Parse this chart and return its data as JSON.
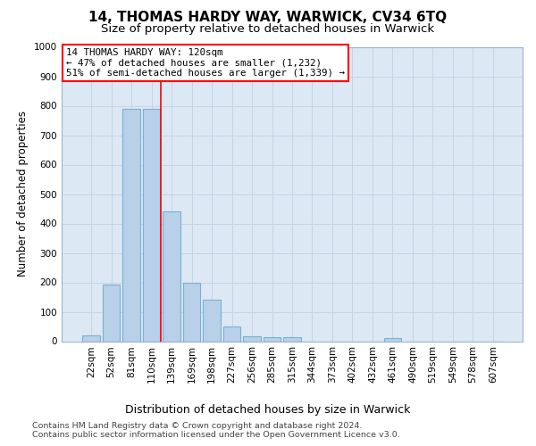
{
  "title": "14, THOMAS HARDY WAY, WARWICK, CV34 6TQ",
  "subtitle": "Size of property relative to detached houses in Warwick",
  "xlabel": "Distribution of detached houses by size in Warwick",
  "ylabel": "Number of detached properties",
  "categories": [
    "22sqm",
    "52sqm",
    "81sqm",
    "110sqm",
    "139sqm",
    "169sqm",
    "198sqm",
    "227sqm",
    "256sqm",
    "285sqm",
    "315sqm",
    "344sqm",
    "373sqm",
    "402sqm",
    "432sqm",
    "461sqm",
    "490sqm",
    "519sqm",
    "549sqm",
    "578sqm",
    "607sqm"
  ],
  "values": [
    20,
    193,
    790,
    790,
    440,
    197,
    140,
    50,
    17,
    14,
    13,
    0,
    0,
    0,
    0,
    10,
    0,
    0,
    0,
    0,
    0
  ],
  "bar_color": "#b8d0e8",
  "bar_edge_color": "#7aafd4",
  "bar_linewidth": 0.8,
  "vline_color": "red",
  "vline_linewidth": 1.2,
  "vline_x": 3.45,
  "ylim": [
    0,
    1000
  ],
  "yticks": [
    0,
    100,
    200,
    300,
    400,
    500,
    600,
    700,
    800,
    900,
    1000
  ],
  "annotation_title": "14 THOMAS HARDY WAY: 120sqm",
  "annotation_line1": "← 47% of detached houses are smaller (1,232)",
  "annotation_line2": "51% of semi-detached houses are larger (1,339) →",
  "annotation_box_facecolor": "white",
  "annotation_box_edgecolor": "red",
  "footer_line1": "Contains HM Land Registry data © Crown copyright and database right 2024.",
  "footer_line2": "Contains public sector information licensed under the Open Government Licence v3.0.",
  "grid_color": "#c8d4e4",
  "fig_background": "#ffffff",
  "plot_background": "#dce8f4",
  "spine_color": "#a0b4cc",
  "title_fontsize": 11,
  "subtitle_fontsize": 9.5,
  "xlabel_fontsize": 9,
  "ylabel_fontsize": 8.5,
  "tick_fontsize": 7.5,
  "footer_fontsize": 6.8,
  "annotation_fontsize": 7.8
}
